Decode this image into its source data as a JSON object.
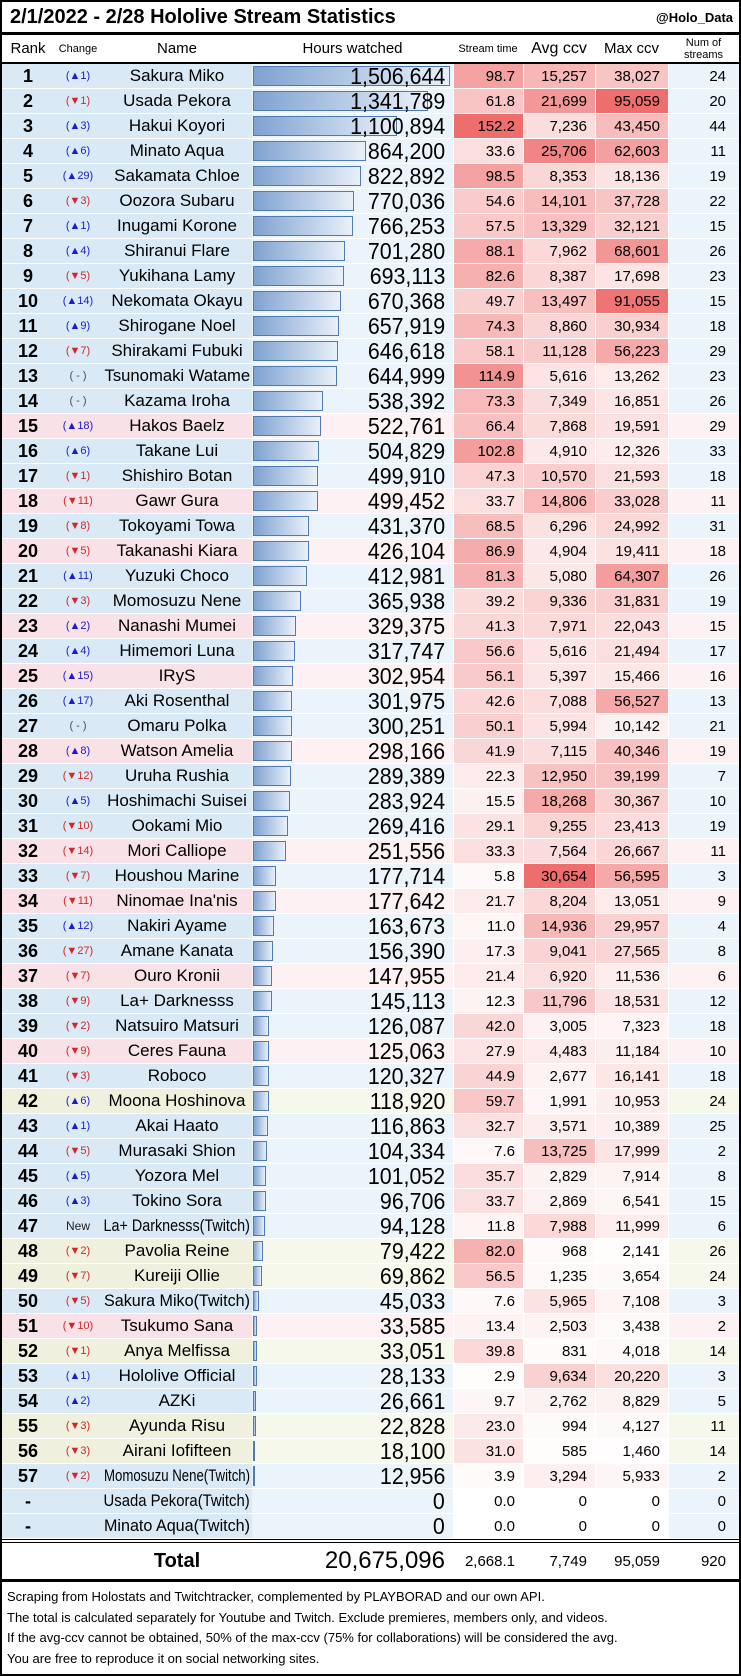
{
  "header": {
    "title": "2/1/2022 - 2/28 Hololive Stream Statistics",
    "credit": "@Holo_Data"
  },
  "columns": {
    "rank": "Rank",
    "change": "Change",
    "name": "Name",
    "hours": "Hours watched",
    "stream_time": "Stream time",
    "avg_ccv": "Avg ccv",
    "max_ccv": "Max ccv",
    "num_streams": "Num of streams"
  },
  "theme": {
    "row_colors": {
      "jp": {
        "base": "#d9eaf6",
        "light": "#ecf4fb"
      },
      "en": {
        "base": "#f9e2e7",
        "light": "#fdf1f4"
      },
      "id": {
        "base": "#eff0dd",
        "light": "#f7f8ec"
      }
    },
    "bar": {
      "fill_left": "#7fa2d1",
      "fill_right": "#e9f0f9",
      "border": "#4f7ab3"
    },
    "heat_high": "#ee6e6e",
    "change_up": "#1b1bd1",
    "change_down": "#d42626"
  },
  "chart_data": {
    "type": "table",
    "title": "2/1/2022 - 2/28 Hololive Stream Statistics",
    "columns": [
      "Rank",
      "Change",
      "Name",
      "Hours watched",
      "Stream time",
      "Avg ccv",
      "Max ccv",
      "Num of streams"
    ],
    "row_fields": [
      "rank",
      "change",
      "name",
      "branch",
      "hours_watched",
      "stream_time",
      "avg_ccv",
      "max_ccv",
      "num_streams"
    ],
    "rows": [
      [
        "1",
        "▲1",
        "Sakura Miko",
        "jp",
        1506644,
        98.7,
        15257,
        38027,
        24
      ],
      [
        "2",
        "▼1",
        "Usada Pekora",
        "jp",
        1341789,
        61.8,
        21699,
        95059,
        20
      ],
      [
        "3",
        "▲3",
        "Hakui Koyori",
        "jp",
        1100894,
        152.2,
        7236,
        43450,
        44
      ],
      [
        "4",
        "▲6",
        "Minato Aqua",
        "jp",
        864200,
        33.6,
        25706,
        62603,
        11
      ],
      [
        "5",
        "▲29",
        "Sakamata Chloe",
        "jp",
        822892,
        98.5,
        8353,
        18136,
        19
      ],
      [
        "6",
        "▼3",
        "Oozora Subaru",
        "jp",
        770036,
        54.6,
        14101,
        37728,
        22
      ],
      [
        "7",
        "▲1",
        "Inugami Korone",
        "jp",
        766253,
        57.5,
        13329,
        32121,
        15
      ],
      [
        "8",
        "▲4",
        "Shiranui Flare",
        "jp",
        701280,
        88.1,
        7962,
        68601,
        26
      ],
      [
        "9",
        "▼5",
        "Yukihana Lamy",
        "jp",
        693113,
        82.6,
        8387,
        17698,
        23
      ],
      [
        "10",
        "▲14",
        "Nekomata Okayu",
        "jp",
        670368,
        49.7,
        13497,
        91055,
        15
      ],
      [
        "11",
        "▲9",
        "Shirogane Noel",
        "jp",
        657919,
        74.3,
        8860,
        30934,
        18
      ],
      [
        "12",
        "▼7",
        "Shirakami Fubuki",
        "jp",
        646618,
        58.1,
        11128,
        56223,
        29
      ],
      [
        "13",
        "-",
        "Tsunomaki Watame",
        "jp",
        644999,
        114.9,
        5616,
        13262,
        23
      ],
      [
        "14",
        "-",
        "Kazama Iroha",
        "jp",
        538392,
        73.3,
        7349,
        16851,
        26
      ],
      [
        "15",
        "▲18",
        "Hakos Baelz",
        "en",
        522761,
        66.4,
        7868,
        19591,
        29
      ],
      [
        "16",
        "▲6",
        "Takane Lui",
        "jp",
        504829,
        102.8,
        4910,
        12326,
        33
      ],
      [
        "17",
        "▼1",
        "Shishiro Botan",
        "jp",
        499910,
        47.3,
        10570,
        21593,
        18
      ],
      [
        "18",
        "▼11",
        "Gawr Gura",
        "en",
        499452,
        33.7,
        14806,
        33028,
        11
      ],
      [
        "19",
        "▼8",
        "Tokoyami Towa",
        "jp",
        431370,
        68.5,
        6296,
        24992,
        31
      ],
      [
        "20",
        "▼5",
        "Takanashi Kiara",
        "en",
        426104,
        86.9,
        4904,
        19411,
        18
      ],
      [
        "21",
        "▲11",
        "Yuzuki Choco",
        "jp",
        412981,
        81.3,
        5080,
        64307,
        26
      ],
      [
        "22",
        "▼3",
        "Momosuzu Nene",
        "jp",
        365938,
        39.2,
        9336,
        31831,
        19
      ],
      [
        "23",
        "▲2",
        "Nanashi Mumei",
        "en",
        329375,
        41.3,
        7971,
        22043,
        15
      ],
      [
        "24",
        "▲4",
        "Himemori Luna",
        "jp",
        317747,
        56.6,
        5616,
        21494,
        17
      ],
      [
        "25",
        "▲15",
        "IRyS",
        "en",
        302954,
        56.1,
        5397,
        15466,
        16
      ],
      [
        "26",
        "▲17",
        "Aki Rosenthal",
        "jp",
        301975,
        42.6,
        7088,
        56527,
        13
      ],
      [
        "27",
        "-",
        "Omaru Polka",
        "jp",
        300251,
        50.1,
        5994,
        10142,
        21
      ],
      [
        "28",
        "▲8",
        "Watson Amelia",
        "en",
        298166,
        41.9,
        7115,
        40346,
        19
      ],
      [
        "29",
        "▼12",
        "Uruha Rushia",
        "jp",
        289389,
        22.3,
        12950,
        39199,
        7
      ],
      [
        "30",
        "▲5",
        "Hoshimachi Suisei",
        "jp",
        283924,
        15.5,
        18268,
        30367,
        10
      ],
      [
        "31",
        "▼10",
        "Ookami Mio",
        "jp",
        269416,
        29.1,
        9255,
        23413,
        19
      ],
      [
        "32",
        "▼14",
        "Mori Calliope",
        "en",
        251556,
        33.3,
        7564,
        26667,
        11
      ],
      [
        "33",
        "▼7",
        "Houshou Marine",
        "jp",
        177714,
        5.8,
        30654,
        56595,
        3
      ],
      [
        "34",
        "▼11",
        "Ninomae Ina'nis",
        "en",
        177642,
        21.7,
        8204,
        13051,
        9
      ],
      [
        "35",
        "▲12",
        "Nakiri Ayame",
        "jp",
        163673,
        11.0,
        14936,
        29957,
        4
      ],
      [
        "36",
        "▼27",
        "Amane Kanata",
        "jp",
        156390,
        17.3,
        9041,
        27565,
        8
      ],
      [
        "37",
        "▼7",
        "Ouro Kronii",
        "en",
        147955,
        21.4,
        6920,
        11536,
        6
      ],
      [
        "38",
        "▼9",
        "La+ Darknesss",
        "jp",
        145113,
        12.3,
        11796,
        18531,
        12
      ],
      [
        "39",
        "▼2",
        "Natsuiro Matsuri",
        "jp",
        126087,
        42.0,
        3005,
        7323,
        18
      ],
      [
        "40",
        "▼9",
        "Ceres Fauna",
        "en",
        125063,
        27.9,
        4483,
        11184,
        10
      ],
      [
        "41",
        "▼3",
        "Roboco",
        "jp",
        120327,
        44.9,
        2677,
        16141,
        18
      ],
      [
        "42",
        "▲6",
        "Moona Hoshinova",
        "id",
        118920,
        59.7,
        1991,
        10953,
        24
      ],
      [
        "43",
        "▲1",
        "Akai Haato",
        "jp",
        116863,
        32.7,
        3571,
        10389,
        25
      ],
      [
        "44",
        "▼5",
        "Murasaki Shion",
        "jp",
        104334,
        7.6,
        13725,
        17999,
        2
      ],
      [
        "45",
        "▲5",
        "Yozora Mel",
        "jp",
        101052,
        35.7,
        2829,
        7914,
        8
      ],
      [
        "46",
        "▲3",
        "Tokino Sora",
        "jp",
        96706,
        33.7,
        2869,
        6541,
        15
      ],
      [
        "47",
        "New",
        "La+ Darknesss(Twitch)",
        "jp",
        94128,
        11.8,
        7988,
        11999,
        6
      ],
      [
        "48",
        "▼2",
        "Pavolia Reine",
        "id",
        79422,
        82.0,
        968,
        2141,
        26
      ],
      [
        "49",
        "▼7",
        "Kureiji Ollie",
        "id",
        69862,
        56.5,
        1235,
        3654,
        24
      ],
      [
        "50",
        "▼5",
        "Sakura Miko(Twitch)",
        "jp",
        45033,
        7.6,
        5965,
        7108,
        3
      ],
      [
        "51",
        "▼10",
        "Tsukumo Sana",
        "en",
        33585,
        13.4,
        2503,
        3438,
        2
      ],
      [
        "52",
        "▼1",
        "Anya Melfissa",
        "id",
        33051,
        39.8,
        831,
        4018,
        14
      ],
      [
        "53",
        "▲1",
        "Hololive Official",
        "jp",
        28133,
        2.9,
        9634,
        20220,
        3
      ],
      [
        "54",
        "▲2",
        "AZKi",
        "jp",
        26661,
        9.7,
        2762,
        8829,
        5
      ],
      [
        "55",
        "▼3",
        "Ayunda Risu",
        "id",
        22828,
        23.0,
        994,
        4127,
        11
      ],
      [
        "56",
        "▼3",
        "Airani Iofifteen",
        "id",
        18100,
        31.0,
        585,
        1460,
        14
      ],
      [
        "57",
        "▼2",
        "Momosuzu Nene(Twitch)",
        "jp",
        12956,
        3.9,
        3294,
        5933,
        2
      ],
      [
        "-",
        "",
        "Usada Pekora(Twitch)",
        "jp",
        0,
        0.0,
        0,
        0,
        0
      ],
      [
        "-",
        "",
        "Minato Aqua(Twitch)",
        "jp",
        0,
        0.0,
        0,
        0,
        0
      ]
    ]
  },
  "total": {
    "label": "Total",
    "hours": "20,675,096",
    "stream_time": "2,668.1",
    "avg_ccv": "7,749",
    "max_ccv": "95,059",
    "num_streams": "920"
  },
  "footer": {
    "lines": [
      "Scraping from Holostats and Twitchtracker, complemented by PLAYBORAD and our own API.",
      "The total is calculated separately for Youtube and Twitch. Exclude premieres, members only, and videos.",
      "If the avg-ccv cannot be obtained, 50% of the max-ccv (75% for collaborations) will be considered the avg.",
      "You are free to reproduce it on social networking sites."
    ]
  }
}
